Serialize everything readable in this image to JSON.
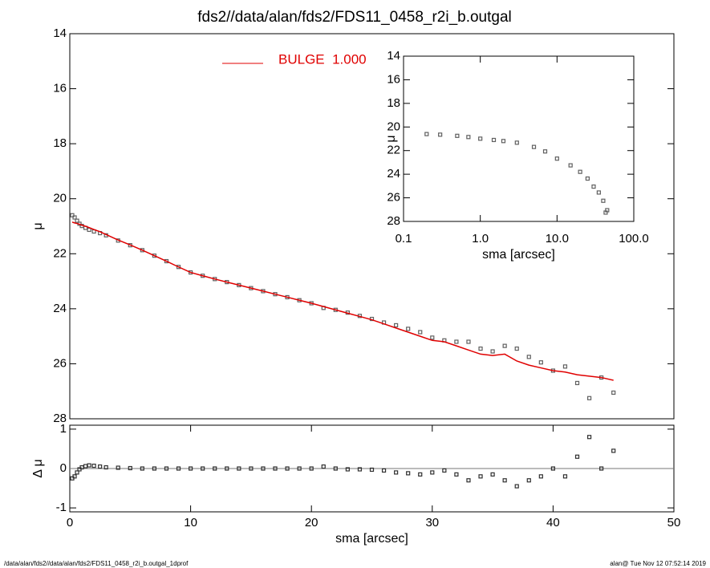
{
  "chart_data": [
    {
      "type": "scatter",
      "title": "fds2//data/alan/fds2/FDS11_0458_r2i_b.outgal",
      "ylabel": "μ",
      "xlim": [
        0,
        50
      ],
      "ylim": [
        14,
        28
      ],
      "y_inverted": true,
      "yticks": [
        14,
        16,
        18,
        20,
        22,
        24,
        26,
        28
      ],
      "x": [
        0.2,
        0.4,
        0.6,
        0.8,
        1.0,
        1.3,
        1.6,
        2,
        2.5,
        3,
        4,
        5,
        6,
        7,
        8,
        9,
        10,
        11,
        12,
        13,
        14,
        15,
        16,
        17,
        18,
        19,
        20,
        21,
        22,
        23,
        24,
        25,
        26,
        27,
        28,
        29,
        30,
        31,
        32,
        33,
        34,
        35,
        36,
        37,
        38,
        39,
        40,
        41,
        42,
        43,
        44,
        45
      ],
      "series": [
        {
          "style": "markers",
          "color": "#606060",
          "values": [
            20.6,
            20.68,
            20.8,
            20.91,
            20.99,
            21.06,
            21.13,
            21.19,
            21.25,
            21.33,
            21.52,
            21.69,
            21.87,
            22.07,
            22.27,
            22.48,
            22.68,
            22.8,
            22.92,
            23.03,
            23.14,
            23.25,
            23.36,
            23.47,
            23.58,
            23.69,
            23.8,
            23.97,
            24.04,
            24.14,
            24.26,
            24.37,
            24.5,
            24.6,
            24.73,
            24.85,
            25.05,
            25.15,
            25.2,
            25.2,
            25.45,
            25.55,
            25.35,
            25.45,
            25.75,
            25.95,
            26.25,
            26.1,
            26.7,
            27.25,
            26.5,
            27.05
          ]
        },
        {
          "name": "BULGE  1.000",
          "style": "line",
          "color": "#e00000",
          "values": [
            20.85,
            20.88,
            20.9,
            20.93,
            20.96,
            21.0,
            21.05,
            21.12,
            21.2,
            21.3,
            21.5,
            21.68,
            21.87,
            22.07,
            22.27,
            22.48,
            22.68,
            22.8,
            22.92,
            23.03,
            23.14,
            23.25,
            23.36,
            23.47,
            23.58,
            23.69,
            23.8,
            23.92,
            24.04,
            24.16,
            24.28,
            24.4,
            24.55,
            24.7,
            24.85,
            25.0,
            25.15,
            25.2,
            25.35,
            25.5,
            25.65,
            25.7,
            25.65,
            25.9,
            26.05,
            26.15,
            26.25,
            26.3,
            26.4,
            26.45,
            26.5,
            26.6
          ]
        }
      ]
    },
    {
      "type": "scatter",
      "ylabel": "Δ μ",
      "xlabel": "sma [arcsec]",
      "xlim": [
        0,
        50
      ],
      "xticks": [
        0,
        10,
        20,
        30,
        40,
        50
      ],
      "ylim": [
        -1.1,
        1.1
      ],
      "yticks": [
        -1,
        0,
        1
      ],
      "zero_line": true,
      "x": [
        0.2,
        0.4,
        0.6,
        0.8,
        1.0,
        1.3,
        1.6,
        2,
        2.5,
        3,
        4,
        5,
        6,
        7,
        8,
        9,
        10,
        11,
        12,
        13,
        14,
        15,
        16,
        17,
        18,
        19,
        20,
        21,
        22,
        23,
        24,
        25,
        26,
        27,
        28,
        29,
        30,
        31,
        32,
        33,
        34,
        35,
        36,
        37,
        38,
        39,
        40,
        41,
        42,
        43,
        44,
        45
      ],
      "values": [
        -0.25,
        -0.2,
        -0.1,
        -0.02,
        0.03,
        0.06,
        0.08,
        0.07,
        0.05,
        0.03,
        0.02,
        0.01,
        0,
        0,
        0,
        0,
        0,
        0,
        0,
        0,
        0,
        0,
        0,
        0,
        0,
        0,
        0,
        0.05,
        0,
        -0.02,
        -0.02,
        -0.03,
        -0.05,
        -0.1,
        -0.12,
        -0.15,
        -0.1,
        -0.05,
        -0.15,
        -0.3,
        -0.2,
        -0.15,
        -0.3,
        -0.45,
        -0.3,
        -0.2,
        0,
        -0.2,
        0.3,
        0.8,
        0,
        0.45
      ],
      "color": "#303030"
    },
    {
      "type": "scatter",
      "xlog": true,
      "xlabel": "sma [arcsec]",
      "ylabel": "μ",
      "xlim": [
        0.1,
        100
      ],
      "xticks": [
        {
          "value": 0.1,
          "label": "0.1"
        },
        {
          "value": 1,
          "label": "1.0"
        },
        {
          "value": 10,
          "label": "10.0"
        },
        {
          "value": 100,
          "label": "100.0"
        }
      ],
      "ylim": [
        14,
        28
      ],
      "y_inverted": true,
      "yticks": [
        14,
        16,
        18,
        20,
        22,
        24,
        26,
        28
      ],
      "x": [
        0.2,
        0.3,
        0.5,
        0.7,
        1,
        1.5,
        2,
        3,
        5,
        7,
        10,
        15,
        20,
        25,
        30,
        35,
        40,
        43,
        45
      ],
      "values": [
        20.6,
        20.65,
        20.75,
        20.85,
        20.99,
        21.1,
        21.19,
        21.33,
        21.69,
        22.07,
        22.68,
        23.25,
        23.8,
        24.37,
        25.05,
        25.55,
        26.25,
        27.25,
        27.05
      ],
      "color": "#606060"
    }
  ],
  "footer_left": "/data/alan/fds2//data/alan/fds2/FDS11_0458_r2i_b.outgal_1dprof",
  "footer_right": "alan@  Tue Nov 12 07:52:14 2019"
}
